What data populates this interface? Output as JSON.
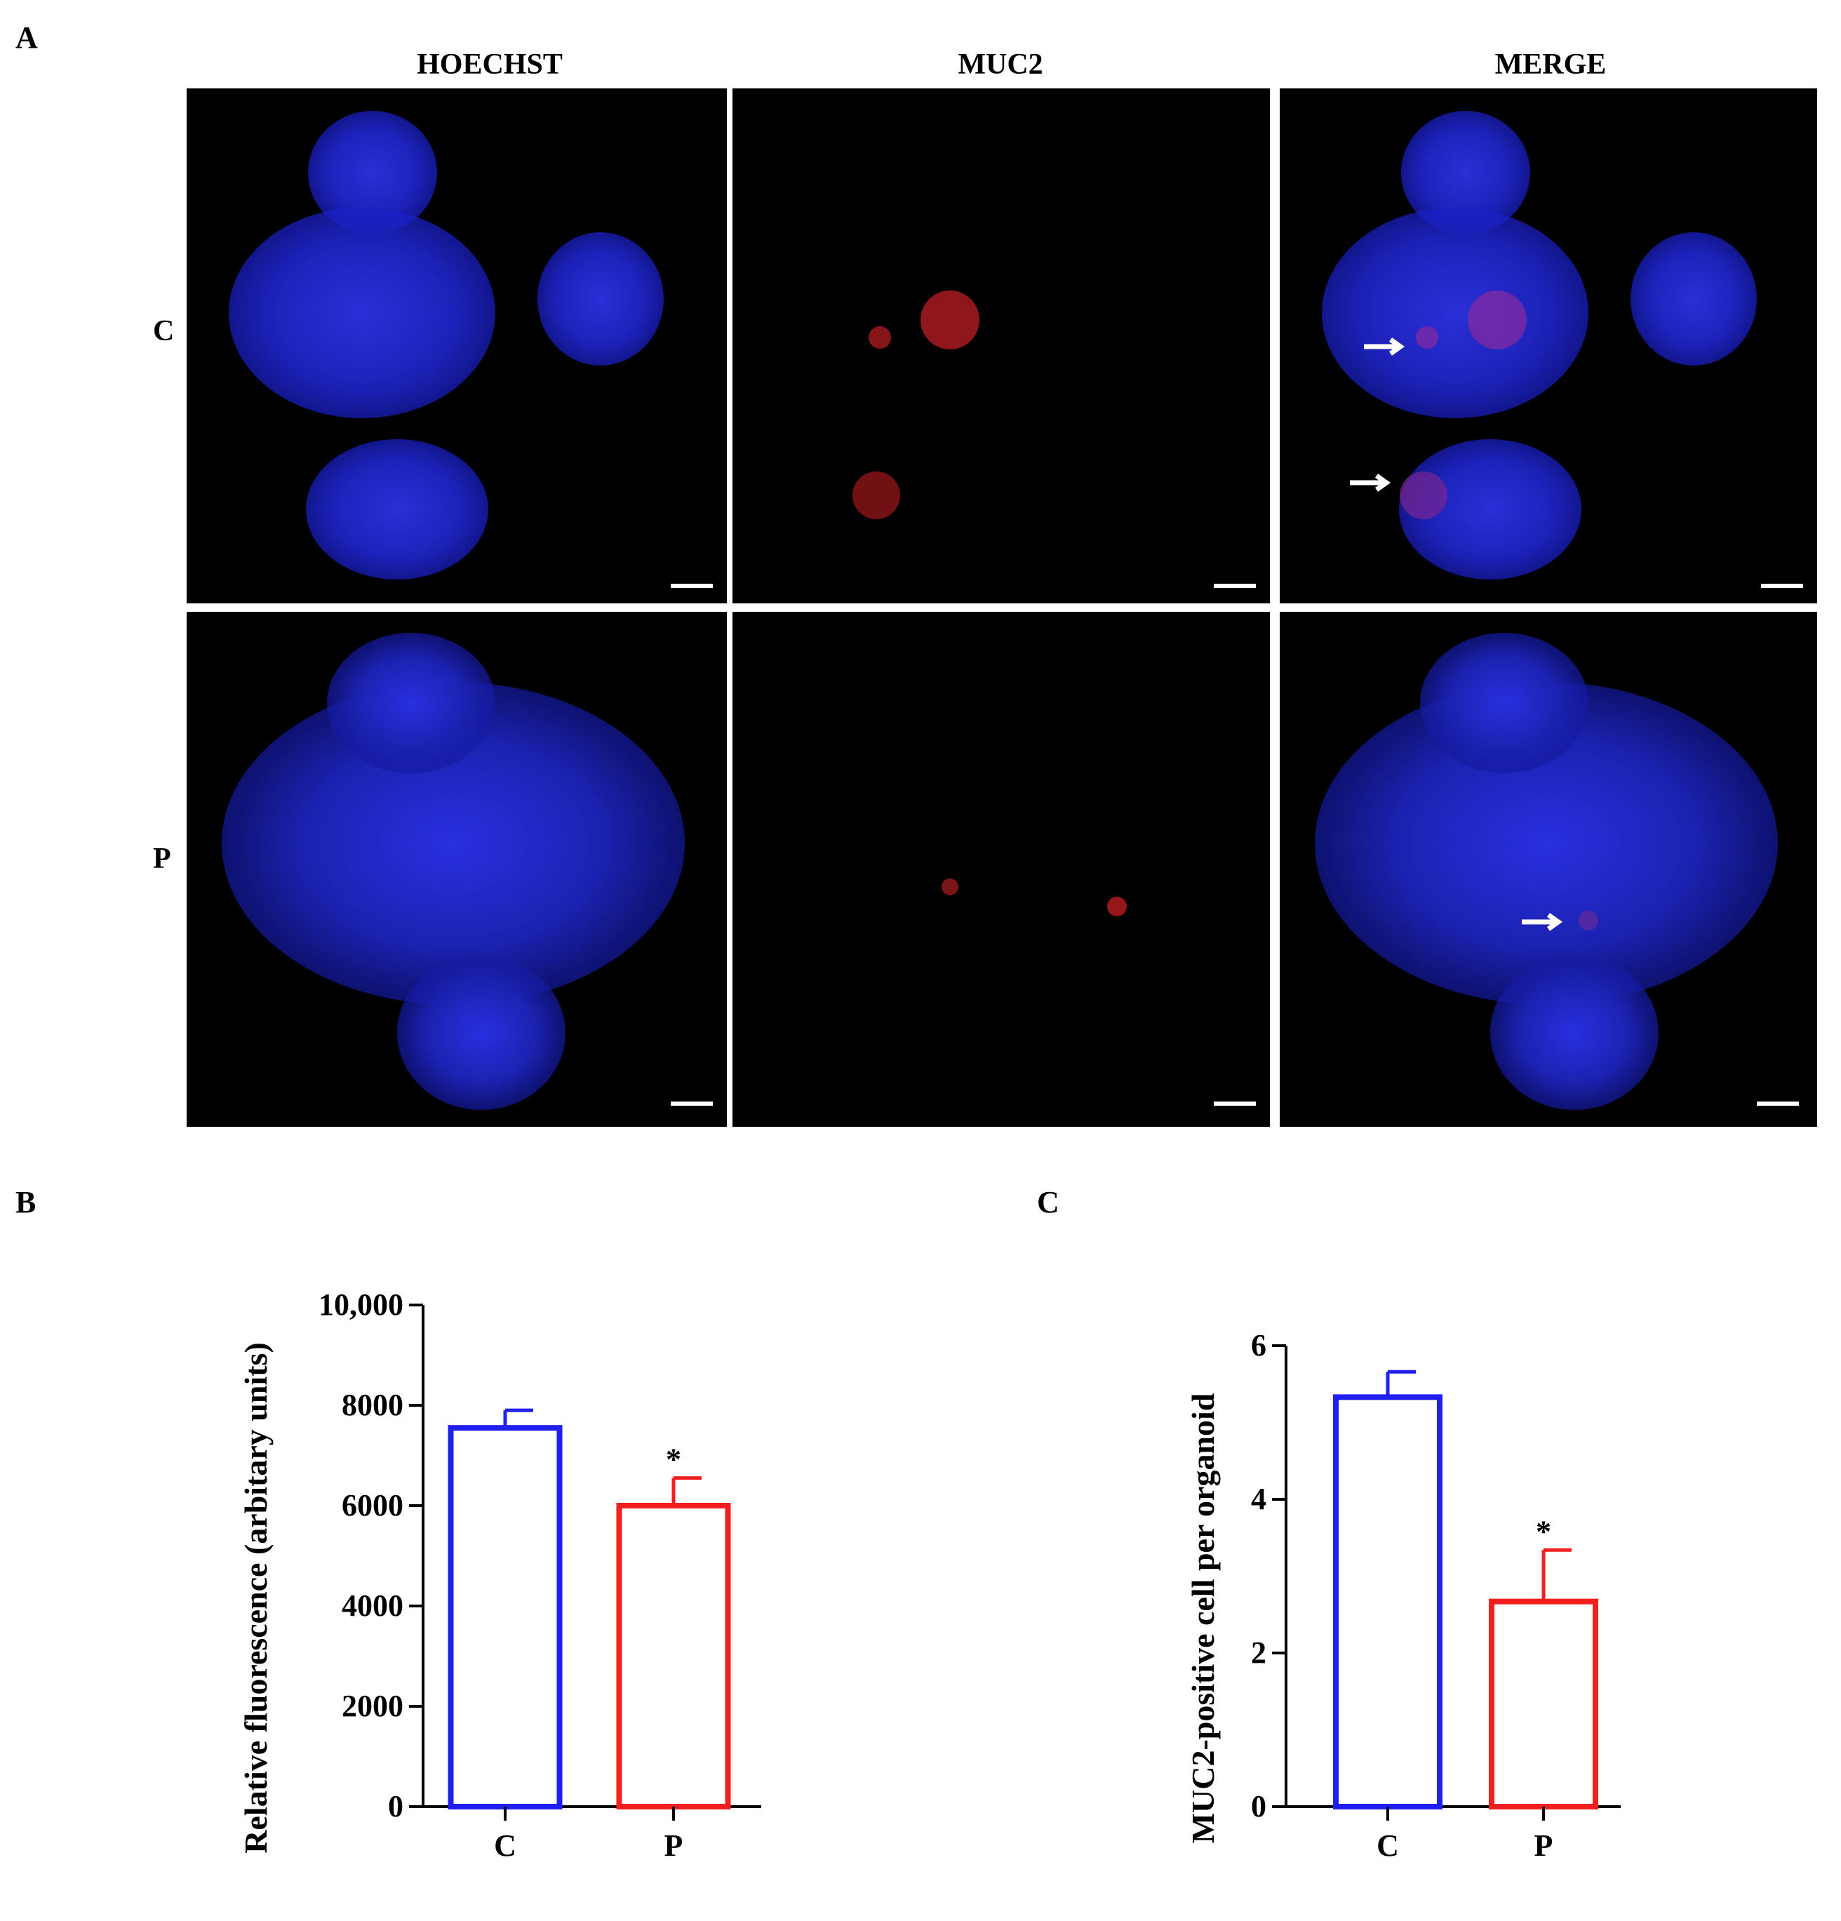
{
  "figure": {
    "panel_a": "A",
    "panel_b": "B",
    "panel_c": "C",
    "columns": [
      "HOECHST",
      "MUC2",
      "MERGE"
    ],
    "rows": [
      "C",
      "P"
    ]
  },
  "colors": {
    "control": "#1f1ff2",
    "treated": "#f21f1f",
    "nuclei": "#1e24c8",
    "muc2": "#c0191e"
  },
  "chart_data": [
    {
      "type": "bar",
      "panel": "B",
      "categories": [
        "C",
        "P"
      ],
      "values": [
        7550,
        6000
      ],
      "errors": [
        350,
        550
      ],
      "significance": [
        "",
        "*"
      ],
      "ylabel": "Relative fluorescence (arbitary units)",
      "xlabel": "",
      "ylim": [
        0,
        10000
      ],
      "yticks": [
        0,
        2000,
        4000,
        6000,
        8000,
        10000
      ],
      "ytick_labels": [
        "0",
        "2000",
        "4000",
        "6000",
        "8000",
        "10,000"
      ],
      "bar_colors": [
        "#1f1ff2",
        "#f21f1f"
      ]
    },
    {
      "type": "bar",
      "panel": "C",
      "categories": [
        "C",
        "P"
      ],
      "values": [
        5.33,
        2.67
      ],
      "errors": [
        0.33,
        0.67
      ],
      "significance": [
        "",
        "*"
      ],
      "ylabel": "MUC2-positive cell per organoid",
      "xlabel": "",
      "ylim": [
        0,
        6
      ],
      "yticks": [
        0,
        2,
        4,
        6
      ],
      "ytick_labels": [
        "0",
        "2",
        "4",
        "6"
      ],
      "bar_colors": [
        "#1f1ff2",
        "#f21f1f"
      ]
    }
  ]
}
